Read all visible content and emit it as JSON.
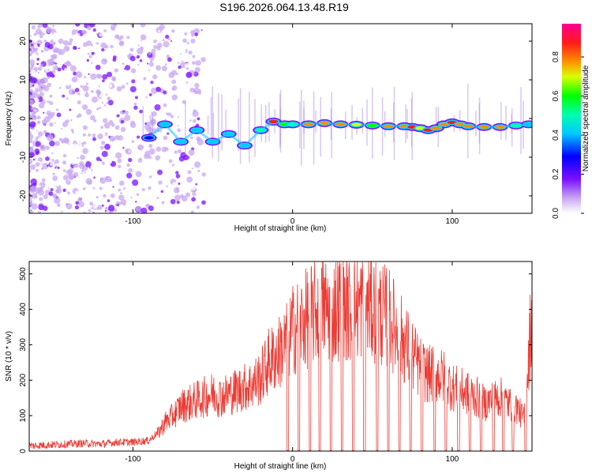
{
  "title": "S196.2026.064.13.48.R19",
  "colors": {
    "line": "#ee3b34",
    "axis": "#000000",
    "background": "#ffffff"
  },
  "chart_data": [
    {
      "type": "heatmap",
      "xlabel": "Height of straight line (km)",
      "ylabel": "Frequency (Hz)",
      "xlim": [
        -165,
        150
      ],
      "ylim": [
        -24.5,
        24.5
      ],
      "xticks": [
        -100,
        0,
        100
      ],
      "yticks": [
        -20,
        -10,
        0,
        10,
        20
      ],
      "colorbar": {
        "label": "Normalized spectral amplitude",
        "range": [
          0,
          0.97
        ],
        "ticks": [
          "0.0",
          "0.2",
          "0.4",
          "0.6",
          "0.8"
        ],
        "tick_values": [
          0.0,
          0.2,
          0.4,
          0.6,
          0.8
        ],
        "colormap": [
          "#ffffff",
          "#a060e0",
          "#6a00ff",
          "#0000ff",
          "#00ffff",
          "#00ff00",
          "#ffff00",
          "#ff8000",
          "#ff0000",
          "#ff00aa"
        ]
      },
      "ridge": {
        "description": "strong spectral ridge near 0 Hz",
        "x": [
          -90,
          -80,
          -70,
          -60,
          -50,
          -40,
          -30,
          -20,
          -12,
          -5,
          0,
          10,
          20,
          30,
          40,
          50,
          60,
          70,
          75,
          80,
          85,
          90,
          95,
          100,
          105,
          110,
          120,
          130,
          140,
          148
        ],
        "freq": [
          -5,
          -1.5,
          -6,
          -3,
          -6,
          -4,
          -7,
          -3,
          -0.8,
          -1.5,
          -1.5,
          -1.5,
          -1.2,
          -1.5,
          -1.6,
          -1.8,
          -2,
          -2,
          -2.2,
          -2.5,
          -3,
          -2.5,
          -1.5,
          -1,
          -1.5,
          -2,
          -2.2,
          -2.2,
          -1.8,
          -1.5
        ],
        "amplitude": [
          0.4,
          0.5,
          0.45,
          0.5,
          0.5,
          0.45,
          0.45,
          0.6,
          0.9,
          0.7,
          0.6,
          0.85,
          0.8,
          0.85,
          0.75,
          0.7,
          0.8,
          0.85,
          0.9,
          0.75,
          0.95,
          0.8,
          0.8,
          0.9,
          0.85,
          0.85,
          0.85,
          0.85,
          0.6,
          0.5
        ]
      }
    },
    {
      "type": "line",
      "xlabel": "Height of straight line (km)",
      "ylabel": "SNR (10 * v/v)",
      "xlim": [
        -165,
        150
      ],
      "ylim": [
        0,
        535
      ],
      "xticks": [
        -100,
        0,
        100
      ],
      "yticks": [
        0,
        100,
        200,
        300,
        400,
        500
      ],
      "series": [
        {
          "name": "SNR",
          "x": [
            -165,
            -150,
            -140,
            -130,
            -120,
            -110,
            -100,
            -90,
            -85,
            -80,
            -75,
            -70,
            -65,
            -60,
            -55,
            -50,
            -45,
            -40,
            -35,
            -30,
            -25,
            -20,
            -15,
            -10,
            -5,
            0,
            5,
            10,
            15,
            20,
            25,
            30,
            35,
            40,
            45,
            50,
            55,
            60,
            65,
            70,
            75,
            80,
            85,
            90,
            95,
            100,
            105,
            110,
            115,
            120,
            125,
            130,
            135,
            140,
            145,
            150
          ],
          "y": [
            15,
            18,
            20,
            22,
            20,
            25,
            25,
            30,
            50,
            90,
            110,
            140,
            150,
            160,
            170,
            180,
            170,
            180,
            190,
            200,
            210,
            230,
            280,
            300,
            330,
            380,
            400,
            420,
            440,
            450,
            440,
            460,
            440,
            450,
            460,
            450,
            430,
            420,
            380,
            340,
            300,
            260,
            240,
            240,
            230,
            200,
            190,
            180,
            170,
            150,
            160,
            170,
            150,
            140,
            100,
            440
          ]
        }
      ],
      "dropouts_x": [
        -3,
        4,
        11,
        17,
        24,
        31,
        38,
        45,
        53,
        60,
        67,
        74,
        81,
        89,
        96,
        104,
        111,
        118,
        126,
        132,
        138,
        146
      ]
    }
  ]
}
